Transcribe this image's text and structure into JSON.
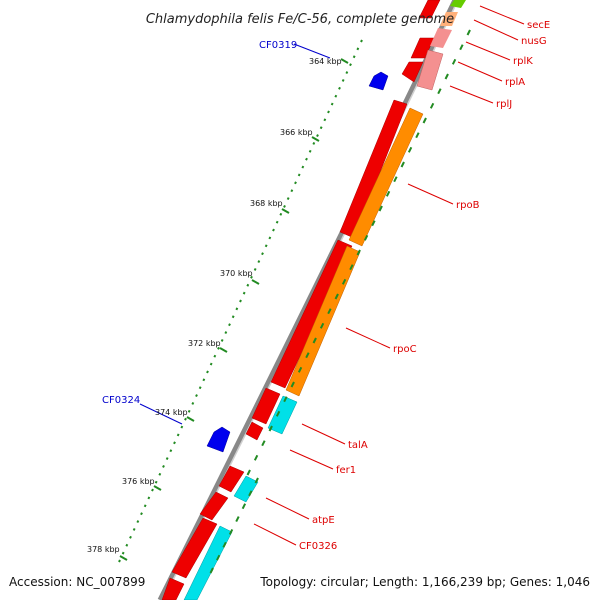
{
  "title": "Chlamydophila felis Fe/C-56, complete genome",
  "footer": {
    "accession": "Accession: NC_007899",
    "summary": "Topology: circular; Length: 1,166,239 bp; Genes: 1,046"
  },
  "scale_labels": [
    "364 kbp",
    "366 kbp",
    "368 kbp",
    "370 kbp",
    "372 kbp",
    "374 kbp",
    "376 kbp",
    "378 kbp"
  ],
  "gene_labels": [
    "secE",
    "nusG",
    "rplK",
    "rplA",
    "rplJ",
    "rpoB",
    "rpoC",
    "talA",
    "fer1",
    "atpE",
    "CF0326"
  ],
  "feature_labels": [
    "CF0319",
    "CF0324"
  ],
  "colors": {
    "backbone": "#808080",
    "cds": "#ee0000",
    "gene_orange": "#ff8c00",
    "gene_cyan": "#00e5ee",
    "gene_pink": "#f08080",
    "feature_blue": "#0000ee",
    "tick_green": "#228b22",
    "label_red": "#dd0000",
    "label_blue": "#0000cc"
  }
}
